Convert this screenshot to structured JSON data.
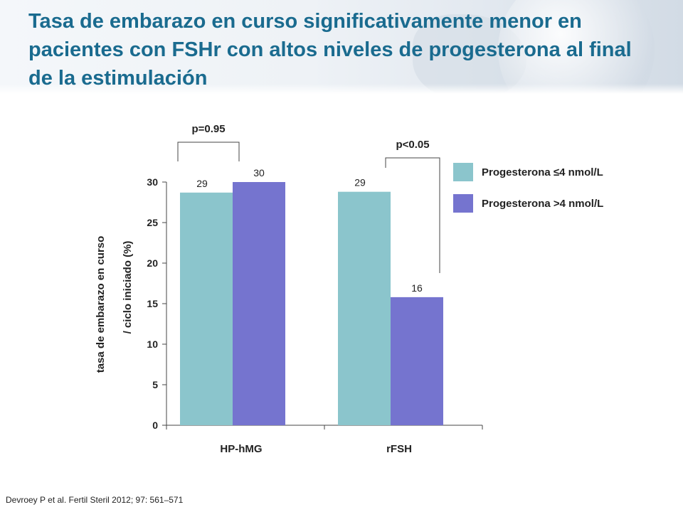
{
  "slide": {
    "title": "Tasa de embarazo en curso significativamente menor en pacientes con FSHr con altos niveles de progesterona al final de la estimulación",
    "citation": "Devroey P et al. Fertil Steril 2012; 97: 561–571"
  },
  "colors": {
    "title": "#1a6b8f",
    "series_low": "#8bc5cc",
    "series_high": "#7574cf",
    "axis": "#444444",
    "text": "#222222"
  },
  "chart_data": {
    "type": "bar",
    "categories": [
      "HP-hMG",
      "rFSH"
    ],
    "series": [
      {
        "name": "Progesterona ≤4 nmol/L",
        "values": [
          29,
          29
        ]
      },
      {
        "name": "Progesterona >4 nmol/L",
        "values": [
          30,
          16
        ]
      }
    ],
    "data_labels": [
      [
        "29",
        "30"
      ],
      [
        "29",
        "16"
      ]
    ],
    "plot_values": [
      [
        28.7,
        30
      ],
      [
        28.8,
        15.8
      ]
    ],
    "ylabel_line1": "tasa de embarazo en curso",
    "ylabel_line2": "/ ciclo iniciado (%)",
    "xlabel": "",
    "ylim": [
      0,
      30
    ],
    "yticks": [
      0,
      5,
      10,
      15,
      20,
      25,
      30
    ],
    "grid": false,
    "legend_position": "top-right",
    "annotations": [
      {
        "category": "HP-hMG",
        "text": "p=0.95"
      },
      {
        "category": "rFSH",
        "text": "p<0.05"
      }
    ]
  }
}
